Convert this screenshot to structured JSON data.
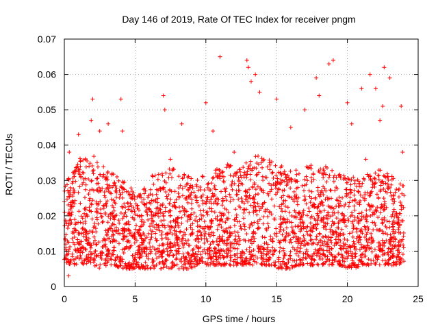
{
  "chart_data": {
    "type": "scatter",
    "title": "Day 146 of 2019, Rate Of TEC Index for receiver pngm",
    "xlabel": "GPS time / hours",
    "ylabel": "ROTI / TECUs",
    "xlim": [
      0,
      25
    ],
    "ylim": [
      0,
      0.07
    ],
    "x_ticks": [
      0,
      5,
      10,
      15,
      20,
      25
    ],
    "x_tick_labels": [
      "0",
      "5",
      "10",
      "15",
      "20",
      "25"
    ],
    "y_ticks": [
      0,
      0.01,
      0.02,
      0.03,
      0.04,
      0.05,
      0.06,
      0.07
    ],
    "y_tick_labels": [
      "0",
      "0.01",
      "0.02",
      "0.03",
      "0.04",
      "0.05",
      "0.06",
      "0.07"
    ],
    "grid": true,
    "marker": "+",
    "marker_color": "#ff0000",
    "series": [
      {
        "name": "ROTI",
        "x": [
          0.02,
          0.1,
          0.2,
          0.3,
          0.35,
          0.5,
          0.7,
          1.0,
          1.2,
          1.5,
          1.7,
          1.9,
          2.0,
          2.1,
          2.5,
          3.0,
          3.1,
          3.5,
          4.0,
          4.1,
          4.3,
          4.7,
          5.0,
          5.3,
          6.0,
          6.5,
          7.0,
          7.1,
          7.5,
          8.0,
          8.3,
          8.9,
          9.5,
          10.0,
          10.4,
          10.5,
          11.0,
          11.5,
          12.0,
          12.5,
          12.9,
          13.0,
          13.2,
          13.5,
          13.8,
          14.0,
          14.5,
          15.0,
          15.5,
          16.0,
          16.5,
          17.0,
          17.5,
          17.8,
          18.0,
          18.5,
          18.7,
          19.0,
          19.5,
          20.0,
          20.3,
          20.5,
          21.0,
          21.3,
          21.6,
          22.0,
          22.3,
          22.5,
          22.6,
          23.0,
          23.5,
          23.8,
          23.9
        ],
        "y": [
          0.021,
          0.012,
          0.009,
          0.003,
          0.038,
          0.018,
          0.027,
          0.043,
          0.011,
          0.036,
          0.009,
          0.047,
          0.053,
          0.014,
          0.044,
          0.031,
          0.046,
          0.011,
          0.053,
          0.044,
          0.014,
          0.025,
          0.014,
          0.008,
          0.022,
          0.013,
          0.054,
          0.05,
          0.036,
          0.012,
          0.046,
          0.028,
          0.011,
          0.052,
          0.022,
          0.044,
          0.065,
          0.013,
          0.038,
          0.025,
          0.064,
          0.062,
          0.058,
          0.06,
          0.055,
          0.014,
          0.035,
          0.053,
          0.008,
          0.045,
          0.028,
          0.05,
          0.012,
          0.059,
          0.054,
          0.02,
          0.063,
          0.064,
          0.015,
          0.052,
          0.046,
          0.012,
          0.056,
          0.036,
          0.06,
          0.056,
          0.047,
          0.051,
          0.062,
          0.059,
          0.018,
          0.051,
          0.038
        ]
      }
    ],
    "cloud_envelope": {
      "description": "dense band of samples across the full day",
      "x_step": 0.5,
      "x": [
        0,
        0.5,
        1,
        1.5,
        2,
        2.5,
        3,
        3.5,
        4,
        4.5,
        5,
        5.5,
        6,
        6.5,
        7,
        7.5,
        8,
        8.5,
        9,
        9.5,
        10,
        10.5,
        11,
        11.5,
        12,
        12.5,
        13,
        13.5,
        14,
        14.5,
        15,
        15.5,
        16,
        16.5,
        17,
        17.5,
        18,
        18.5,
        19,
        19.5,
        20,
        20.5,
        21,
        21.5,
        22,
        22.5,
        23,
        23.5,
        24
      ],
      "low": [
        0.007,
        0.006,
        0.006,
        0.006,
        0.006,
        0.005,
        0.006,
        0.006,
        0.005,
        0.005,
        0.005,
        0.005,
        0.005,
        0.005,
        0.005,
        0.005,
        0.005,
        0.005,
        0.005,
        0.006,
        0.006,
        0.006,
        0.006,
        0.006,
        0.006,
        0.006,
        0.006,
        0.006,
        0.006,
        0.006,
        0.005,
        0.005,
        0.005,
        0.006,
        0.006,
        0.006,
        0.006,
        0.006,
        0.006,
        0.006,
        0.005,
        0.005,
        0.006,
        0.006,
        0.006,
        0.006,
        0.006,
        0.006,
        0.007
      ],
      "high": [
        0.029,
        0.032,
        0.036,
        0.037,
        0.038,
        0.035,
        0.033,
        0.032,
        0.031,
        0.028,
        0.028,
        0.029,
        0.031,
        0.032,
        0.033,
        0.034,
        0.033,
        0.032,
        0.031,
        0.031,
        0.032,
        0.033,
        0.034,
        0.035,
        0.035,
        0.034,
        0.036,
        0.037,
        0.037,
        0.036,
        0.035,
        0.034,
        0.033,
        0.033,
        0.034,
        0.035,
        0.034,
        0.034,
        0.033,
        0.032,
        0.031,
        0.031,
        0.031,
        0.032,
        0.033,
        0.033,
        0.032,
        0.03,
        0.029
      ]
    },
    "point_count_per_hour": 120
  }
}
